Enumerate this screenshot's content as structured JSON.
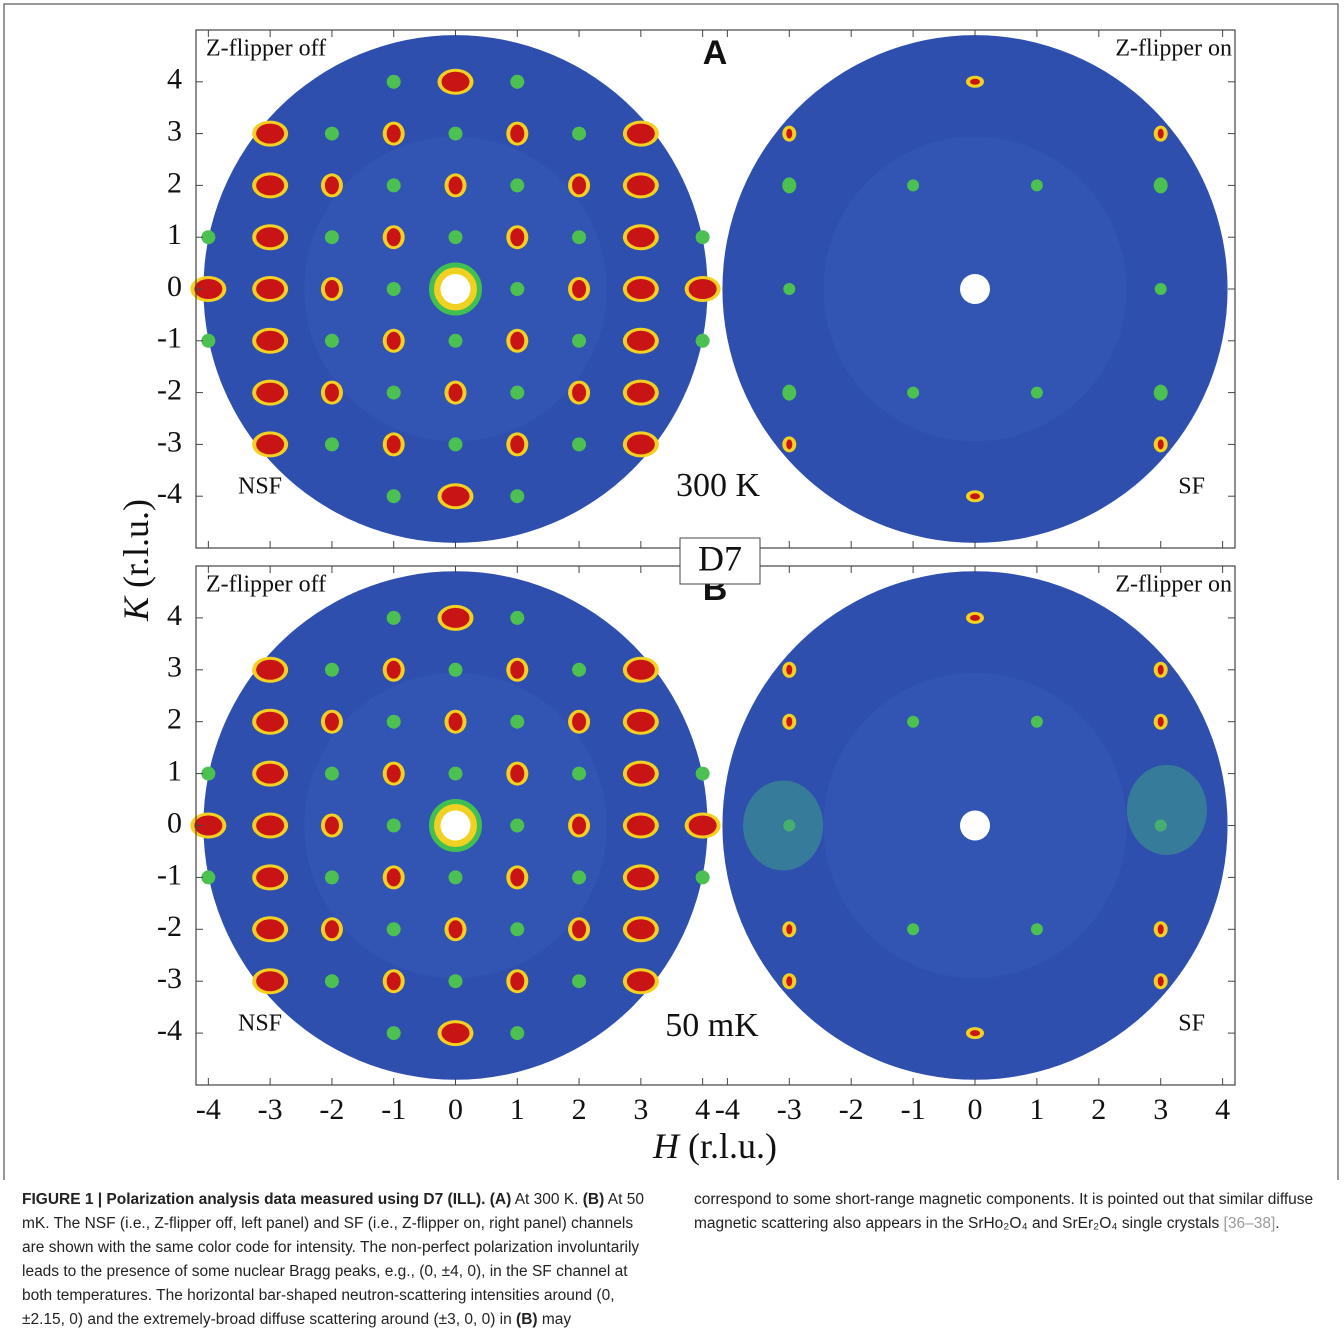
{
  "figure": {
    "instrument": "D7",
    "x_axis": {
      "symbol": "H",
      "unit": " (r.l.u.)",
      "ticks": [
        -4,
        -3,
        -2,
        -1,
        0,
        1,
        2,
        3,
        4
      ],
      "lim": [
        -4.2,
        4.2
      ]
    },
    "y_axis": {
      "symbol": "K",
      "unit": " (r.l.u.)",
      "ticks": [
        -4,
        -3,
        -2,
        -1,
        0,
        1,
        2,
        3,
        4
      ],
      "lim": [
        -5,
        5
      ]
    },
    "rows": [
      {
        "letter": "A",
        "temperature": "300 K",
        "left": {
          "flipper": "Z-flipper off",
          "channel": "NSF"
        },
        "right": {
          "flipper": "Z-flipper on",
          "channel": "SF"
        }
      },
      {
        "letter": "B",
        "temperature": "50 mK",
        "left": {
          "flipper": "Z-flipper off",
          "channel": "NSF"
        },
        "right": {
          "flipper": "Z-flipper on",
          "channel": "SF"
        }
      }
    ]
  },
  "caption": [
    {
      "text": "FIGURE 1 | Polarization analysis data measured using D7 (ILL).",
      "style": "bold"
    },
    {
      "text": " (A)",
      "style": "bold"
    },
    {
      "text": " At 300 K.",
      "style": "normal"
    },
    {
      "text": " (B)",
      "style": "bold"
    },
    {
      "text": " At 50 mK. The NSF (i.e., Z-flipper off, left panel) and SF (i.e., Z-flipper on, right panel) channels are shown with the same color code for intensity. The non-perfect polarization involuntarily leads to the presence of some nuclear Bragg peaks, e.g., (0, ±4, 0), in the SF channel at both temperatures. The horizontal bar-shaped neutron-scattering intensities around (0, ±2.15, 0) and the extremely-broad diffuse scattering around (±3, 0, 0) in",
      "style": "normal"
    },
    {
      "text": " (B)",
      "style": "bold"
    },
    {
      "text": " may correspond to some short-range magnetic components. It is pointed out that similar diffuse magnetic scattering also appears in the SrHo₂O₄ and SrEr₂O₄ single crystals",
      "style": "normal"
    },
    {
      "text": " [36–38]",
      "style": "ref"
    },
    {
      "text": ".",
      "style": "normal"
    }
  ]
}
